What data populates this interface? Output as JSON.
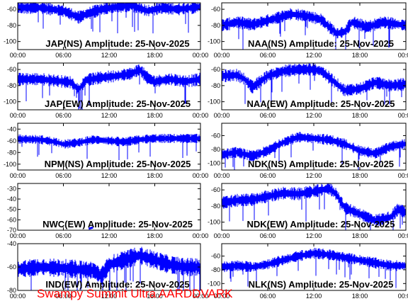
{
  "footer": {
    "text": "Swampy Summit Ultra AARDDVARK"
  },
  "colors": {
    "trace": "#0000ff",
    "axes": "#000000",
    "footer": "#ff0000",
    "background": "#ffffff"
  },
  "chart_data": [
    {
      "type": "line",
      "title": "JAP(NS) Amplitude: 25-Nov-2025",
      "xticks": [
        "00:00",
        "06:00",
        "12:00",
        "18:00",
        "00:00"
      ],
      "yticks": [
        -60,
        -80,
        -100
      ],
      "ylim": [
        -110,
        -52
      ],
      "xlim": [
        0,
        24
      ],
      "series": [
        {
          "name": "",
          "x": [
            0,
            3,
            6,
            8,
            9,
            11,
            13,
            15,
            17,
            19,
            21,
            24
          ],
          "y": [
            -58,
            -58,
            -62,
            -70,
            -66,
            -60,
            -57,
            -55,
            -62,
            -58,
            -60,
            -57
          ]
        }
      ]
    },
    {
      "type": "line",
      "title": "NAA(NS) Amplitude: 25-Nov-2025",
      "xticks": [
        "00:00",
        "06:00",
        "12:00",
        "18:00",
        "00:00"
      ],
      "yticks": [
        -60,
        -80,
        -100
      ],
      "ylim": [
        -110,
        -52
      ],
      "xlim": [
        0,
        24
      ],
      "series": [
        {
          "name": "",
          "x": [
            0,
            2,
            4,
            6,
            9,
            11,
            13,
            14,
            15,
            16,
            17,
            19,
            21,
            24
          ],
          "y": [
            -80,
            -76,
            -79,
            -74,
            -66,
            -68,
            -73,
            -82,
            -90,
            -88,
            -76,
            -82,
            -76,
            -80
          ]
        }
      ]
    },
    {
      "type": "line",
      "title": "JAP(EW) Amplitude: 25-Nov-2025",
      "xticks": [
        "00:00",
        "06:00",
        "12:00",
        "18:00",
        "00:00"
      ],
      "yticks": [
        -60,
        -80,
        -100
      ],
      "ylim": [
        -110,
        -52
      ],
      "xlim": [
        0,
        24
      ],
      "series": [
        {
          "name": "",
          "x": [
            0,
            3,
            5,
            7,
            8,
            9,
            11,
            13,
            15,
            16,
            17,
            18,
            20,
            22,
            24
          ],
          "y": [
            -72,
            -72,
            -74,
            -76,
            -85,
            -73,
            -70,
            -68,
            -65,
            -60,
            -70,
            -75,
            -72,
            -75,
            -72
          ]
        }
      ]
    },
    {
      "type": "line",
      "title": "NAA(EW) Amplitude: 25-Nov-2025",
      "xticks": [
        "00:00",
        "06:00",
        "12:00",
        "18:00",
        "00:00"
      ],
      "yticks": [
        -60,
        -80,
        -100
      ],
      "ylim": [
        -110,
        -52
      ],
      "xlim": [
        0,
        24
      ],
      "series": [
        {
          "name": "",
          "x": [
            0,
            2,
            3,
            4,
            6,
            8,
            10,
            12,
            13,
            14,
            15,
            16,
            18,
            20,
            22,
            24
          ],
          "y": [
            -68,
            -67,
            -72,
            -82,
            -68,
            -62,
            -60,
            -60,
            -62,
            -70,
            -78,
            -86,
            -84,
            -76,
            -80,
            -78
          ]
        }
      ]
    },
    {
      "type": "line",
      "title": "NPM(NS) Amplitude: 25-Nov-2025",
      "xticks": [
        "00:00",
        "06:00",
        "12:00",
        "18:00",
        "00:00"
      ],
      "yticks": [
        -40,
        -60,
        -80,
        -100
      ],
      "ylim": [
        -110,
        -30
      ],
      "xlim": [
        0,
        24
      ],
      "series": [
        {
          "name": "",
          "x": [
            0,
            3,
            5,
            6,
            8,
            10,
            12,
            14,
            16,
            18,
            20,
            24
          ],
          "y": [
            -57,
            -58,
            -62,
            -66,
            -63,
            -58,
            -60,
            -62,
            -58,
            -56,
            -56,
            -56
          ]
        }
      ]
    },
    {
      "type": "line",
      "title": "NDK(NS) Amplitude: 25-Nov-2025",
      "xticks": [
        "00:00",
        "06:00",
        "12:00",
        "18:00",
        "00:00"
      ],
      "yticks": [
        -60,
        -80,
        -100
      ],
      "ylim": [
        -110,
        -42
      ],
      "xlim": [
        0,
        24
      ],
      "series": [
        {
          "name": "",
          "x": [
            0,
            2,
            4,
            6,
            8,
            10,
            12,
            14,
            16,
            18,
            20,
            22,
            24
          ],
          "y": [
            -88,
            -84,
            -90,
            -82,
            -70,
            -62,
            -64,
            -66,
            -72,
            -82,
            -86,
            -76,
            -72
          ]
        }
      ]
    },
    {
      "type": "line",
      "title": "NWC(EW) Amplitude: 25-Nov-2025",
      "xticks": [
        "00:00",
        "06:00",
        "12:00",
        "18:00",
        "00:00"
      ],
      "yticks": [
        -30,
        -40,
        -50,
        -60,
        -70
      ],
      "ylim": [
        -70,
        -25
      ],
      "xlim": [
        0,
        24
      ],
      "series": [
        {
          "name": "",
          "x": [
            9.5,
            9.6,
            9.7
          ],
          "y": [
            -69,
            -68,
            -69
          ]
        }
      ]
    },
    {
      "type": "line",
      "title": "NDK(EW) Amplitude: 25-Nov-2025",
      "xticks": [
        "00:00",
        "06:00",
        "12:00",
        "18:00",
        "00:00"
      ],
      "yticks": [
        -60,
        -80,
        -100
      ],
      "ylim": [
        -110,
        -52
      ],
      "xlim": [
        0,
        24
      ],
      "series": [
        {
          "name": "",
          "x": [
            0,
            2,
            4,
            6,
            8,
            10,
            12,
            14,
            15,
            16,
            18,
            20,
            22,
            23,
            24
          ],
          "y": [
            -76,
            -73,
            -72,
            -68,
            -64,
            -65,
            -62,
            -58,
            -66,
            -82,
            -90,
            -98,
            -94,
            -84,
            -88
          ]
        }
      ]
    },
    {
      "type": "line",
      "title": "IND(EW) Amplitude: 25-Nov-2025",
      "xticks": [
        "00:00",
        "06:00",
        "12:00",
        "18:00",
        "00:00"
      ],
      "yticks": [
        -40,
        -60,
        -80
      ],
      "ylim": [
        -80,
        -40
      ],
      "xlim": [
        0,
        24
      ],
      "series": [
        {
          "name": "",
          "x": [
            0,
            3,
            6,
            8,
            10,
            11,
            12,
            14,
            16,
            18,
            20,
            22,
            24
          ],
          "y": [
            -62,
            -60,
            -61,
            -62,
            -63,
            -68,
            -58,
            -54,
            -50,
            -54,
            -58,
            -60,
            -60
          ]
        }
      ]
    },
    {
      "type": "line",
      "title": "NLK(NS) Amplitude: 25-Nov-2025",
      "xticks": [
        "00:00",
        "06:00",
        "12:00",
        "18:00",
        "00:00"
      ],
      "yticks": [
        -60,
        -80,
        -100
      ],
      "ylim": [
        -110,
        -42
      ],
      "xlim": [
        0,
        24
      ],
      "series": [
        {
          "name": "",
          "x": [
            0,
            2,
            4,
            6,
            8,
            10,
            12,
            14,
            16,
            18,
            20,
            22,
            24
          ],
          "y": [
            -76,
            -74,
            -76,
            -72,
            -66,
            -60,
            -56,
            -58,
            -62,
            -66,
            -70,
            -74,
            -74
          ]
        }
      ]
    }
  ]
}
